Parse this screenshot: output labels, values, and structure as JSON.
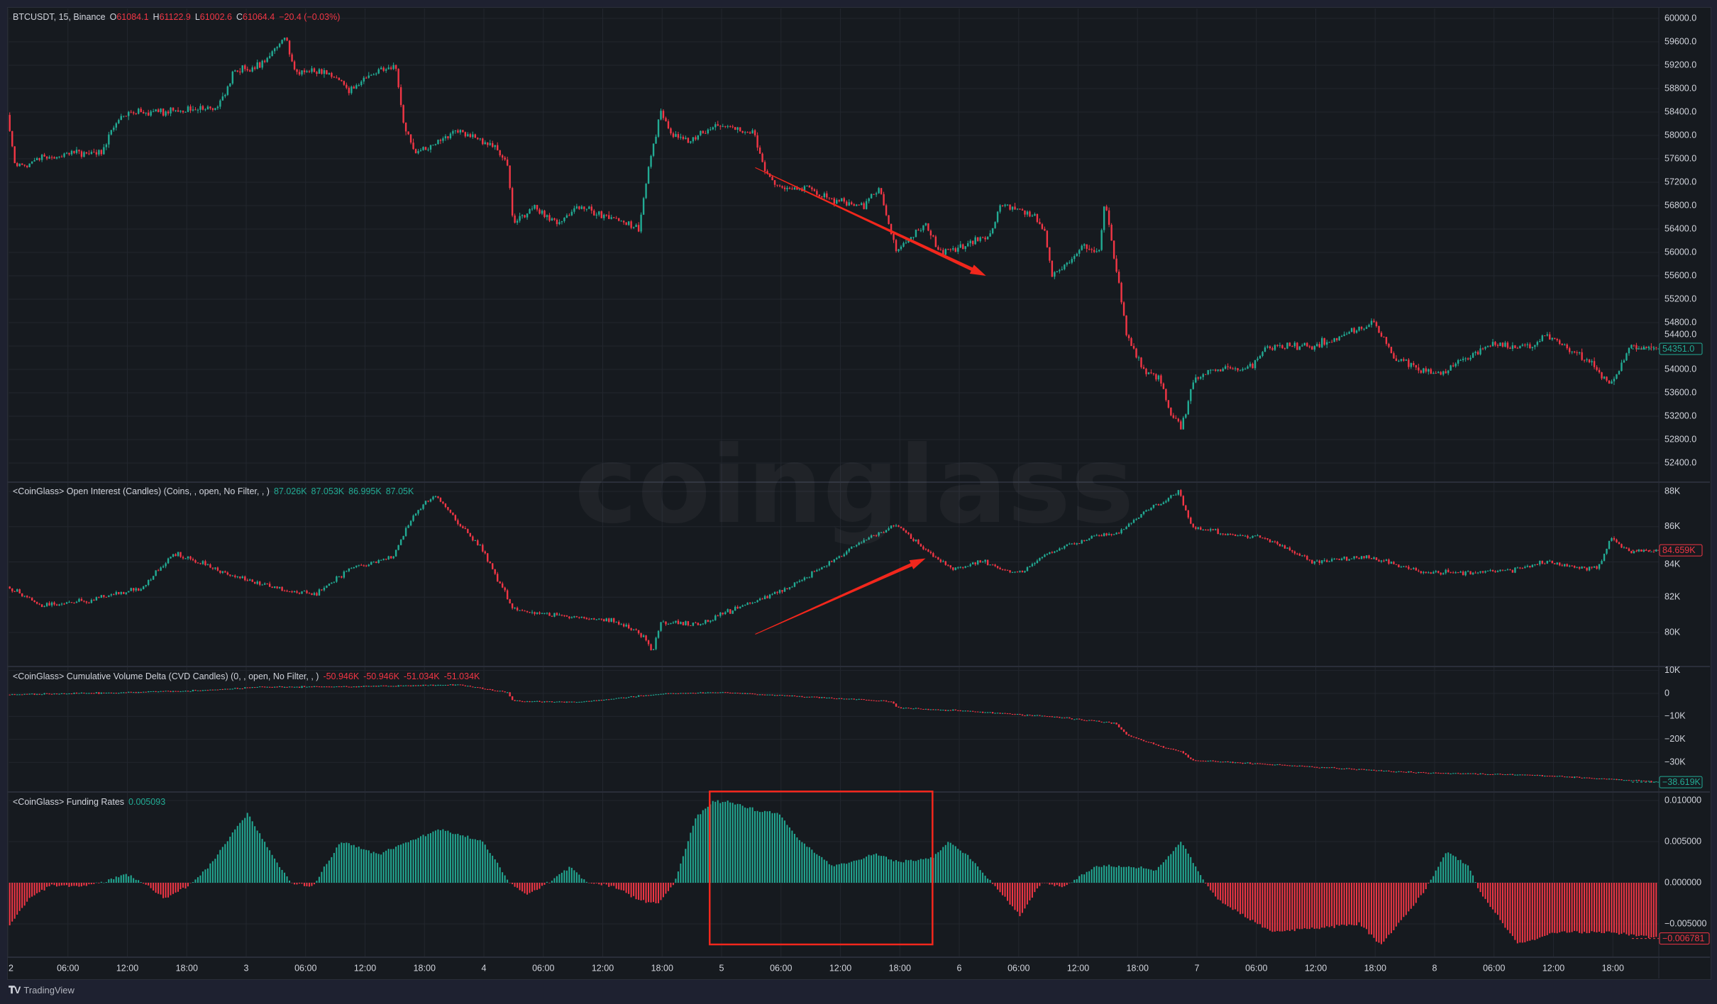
{
  "legends": {
    "price": {
      "symbol": "BTCUSDT, 15, Binance",
      "ohlc": [
        {
          "k": "O",
          "v": "61084.1"
        },
        {
          "k": "H",
          "v": "61122.9"
        },
        {
          "k": "L",
          "v": "61002.6"
        },
        {
          "k": "C",
          "v": "61064.4"
        }
      ],
      "change": "−20.4 (−0.03%)"
    },
    "oi": {
      "title": "<CoinGlass> Open Interest (Candles) (Coins, , open, No Filter, , )",
      "values": [
        "87.026K",
        "87.053K",
        "86.995K",
        "87.05K"
      ]
    },
    "cvd": {
      "title": "<CoinGlass> Cumulative Volume Delta (CVD Candles) (0, , open, No Filter, , )",
      "values": [
        "-50.946K",
        "-50.946K",
        "-51.034K",
        "-51.034K"
      ]
    },
    "funding": {
      "title": "<CoinGlass> Funding Rates",
      "value": "0.005093"
    }
  },
  "axes": {
    "price_ticks": [
      "60000.0",
      "59600.0",
      "59200.0",
      "58800.0",
      "58400.0",
      "58000.0",
      "57600.0",
      "57200.0",
      "56800.0",
      "56400.0",
      "56000.0",
      "55600.0",
      "55200.0",
      "54800.0",
      "54400.0",
      "54000.0",
      "53600.0",
      "53200.0",
      "52800.0",
      "52400.0"
    ],
    "price_tick_values": [
      60000,
      59600,
      59200,
      58800,
      58400,
      58000,
      57600,
      57200,
      56800,
      56400,
      56000,
      55600,
      55200,
      54800,
      54400,
      54000,
      53600,
      53200,
      52800,
      52400
    ],
    "oi_ticks": [
      "88K",
      "86K",
      "84K",
      "82K",
      "80K"
    ],
    "oi_tick_values": [
      88,
      86,
      84,
      82,
      80
    ],
    "cvd_ticks": [
      "10K",
      "0",
      "−10K",
      "−20K",
      "−30K"
    ],
    "cvd_tick_values": [
      10,
      0,
      -10,
      -20,
      -30
    ],
    "funding_ticks": [
      "0.010000",
      "0.005000",
      "0.000000",
      "−0.005000"
    ],
    "funding_tick_values": [
      0.01,
      0.005,
      0,
      -0.005
    ],
    "time_labels": [
      "2",
      "06:00",
      "12:00",
      "18:00",
      "3",
      "06:00",
      "12:00",
      "18:00",
      "4",
      "06:00",
      "12:00",
      "18:00",
      "5",
      "06:00",
      "12:00",
      "18:00",
      "6",
      "06:00",
      "12:00",
      "18:00",
      "7",
      "06:00",
      "12:00",
      "18:00",
      "8",
      "06:00",
      "12:00",
      "18:00"
    ],
    "time_label_hours": [
      0,
      6,
      12,
      18,
      24,
      30,
      36,
      42,
      48,
      54,
      60,
      66,
      72,
      78,
      84,
      90,
      96,
      102,
      108,
      114,
      120,
      126,
      132,
      138,
      144,
      150,
      156,
      162
    ]
  },
  "last_values": {
    "price": {
      "label": "54351.0",
      "value": 54351,
      "color": "#22ab94"
    },
    "oi": {
      "label": "84.659K",
      "value": 84.659,
      "color": "#f23645"
    },
    "cvd": {
      "label": "−38.619K",
      "value": -38.619,
      "color": "#22ab94"
    },
    "funding": {
      "label": "−0.006781",
      "value": -0.006781,
      "color": "#f23645"
    }
  },
  "colors": {
    "up": "#22ab94",
    "down": "#f23645",
    "annotation": "#f2271c"
  },
  "watermark": "coinglass",
  "footer": {
    "brand": "TradingView"
  },
  "chart_data": {
    "type": "candlestick",
    "interval_minutes": 15,
    "span_hours": 166.7,
    "price_path": [
      [
        0,
        58350
      ],
      [
        0.8,
        57450
      ],
      [
        3.5,
        57600
      ],
      [
        6.9,
        57700
      ],
      [
        9.6,
        57700
      ],
      [
        10.7,
        58200
      ],
      [
        12.4,
        58400
      ],
      [
        16.8,
        58400
      ],
      [
        21.2,
        58500
      ],
      [
        22.9,
        59100
      ],
      [
        25.7,
        59200
      ],
      [
        28.1,
        59700
      ],
      [
        29,
        59100
      ],
      [
        32.3,
        59100
      ],
      [
        34.5,
        58800
      ],
      [
        37.3,
        59100
      ],
      [
        39.2,
        59200
      ],
      [
        40,
        58200
      ],
      [
        41.1,
        57700
      ],
      [
        45.6,
        58100
      ],
      [
        49.4,
        57800
      ],
      [
        50.5,
        57500
      ],
      [
        51.1,
        56500
      ],
      [
        53.3,
        56800
      ],
      [
        55.5,
        56500
      ],
      [
        57.7,
        56800
      ],
      [
        61.1,
        56600
      ],
      [
        63.8,
        56400
      ],
      [
        64.9,
        57600
      ],
      [
        66,
        58400
      ],
      [
        67.1,
        58000
      ],
      [
        68.8,
        57900
      ],
      [
        72.1,
        58200
      ],
      [
        75.4,
        58000
      ],
      [
        76.5,
        57400
      ],
      [
        77.6,
        57100
      ],
      [
        81,
        57100
      ],
      [
        83.2,
        56900
      ],
      [
        86.5,
        56800
      ],
      [
        88.1,
        57100
      ],
      [
        89.8,
        56000
      ],
      [
        92.6,
        56500
      ],
      [
        94.2,
        56000
      ],
      [
        96.4,
        56100
      ],
      [
        99.2,
        56300
      ],
      [
        100.3,
        56800
      ],
      [
        103.1,
        56700
      ],
      [
        104.7,
        56400
      ],
      [
        105.5,
        55600
      ],
      [
        108.6,
        56100
      ],
      [
        110.3,
        56000
      ],
      [
        110.8,
        56900
      ],
      [
        111.9,
        55800
      ],
      [
        113,
        54600
      ],
      [
        114.7,
        54000
      ],
      [
        116.4,
        53800
      ],
      [
        117.5,
        53200
      ],
      [
        118.6,
        53000
      ],
      [
        119.7,
        53800
      ],
      [
        121.9,
        54000
      ],
      [
        125.2,
        54000
      ],
      [
        127.4,
        54400
      ],
      [
        131.8,
        54400
      ],
      [
        135.2,
        54600
      ],
      [
        137.9,
        54800
      ],
      [
        140.1,
        54200
      ],
      [
        142.9,
        54000
      ],
      [
        144.6,
        53900
      ],
      [
        147.3,
        54200
      ],
      [
        149.6,
        54400
      ],
      [
        154,
        54400
      ],
      [
        155.1,
        54600
      ],
      [
        158.4,
        54300
      ],
      [
        160.6,
        54000
      ],
      [
        161.9,
        53700
      ],
      [
        163.9,
        54400
      ],
      [
        166.7,
        54351
      ]
    ],
    "oi_path_k": [
      [
        0,
        82.6
      ],
      [
        3.5,
        81.5
      ],
      [
        8,
        81.8
      ],
      [
        13.5,
        82.5
      ],
      [
        16.8,
        84.5
      ],
      [
        22.9,
        83.2
      ],
      [
        27.9,
        82.4
      ],
      [
        31.2,
        82.2
      ],
      [
        34.5,
        83.6
      ],
      [
        38.9,
        84.3
      ],
      [
        41.1,
        86.7
      ],
      [
        43.1,
        87.8
      ],
      [
        45.6,
        86.2
      ],
      [
        47.8,
        84.8
      ],
      [
        50.5,
        82
      ],
      [
        51.1,
        81.3
      ],
      [
        56.6,
        80.9
      ],
      [
        61.1,
        80.7
      ],
      [
        64.4,
        79.8
      ],
      [
        65.1,
        78.8
      ],
      [
        66,
        80.6
      ],
      [
        69.9,
        80.5
      ],
      [
        74.3,
        81.5
      ],
      [
        78.7,
        82.5
      ],
      [
        83.2,
        84
      ],
      [
        86.5,
        85.3
      ],
      [
        89.8,
        86.1
      ],
      [
        92,
        85
      ],
      [
        95.3,
        83.6
      ],
      [
        98.7,
        84
      ],
      [
        102,
        83.3
      ],
      [
        105.3,
        84.5
      ],
      [
        109.7,
        85.5
      ],
      [
        111.9,
        85.6
      ],
      [
        115.2,
        87
      ],
      [
        118.3,
        88
      ],
      [
        119.7,
        85.9
      ],
      [
        124.1,
        85.5
      ],
      [
        127.4,
        85.3
      ],
      [
        131.8,
        84
      ],
      [
        137.4,
        84.3
      ],
      [
        142.9,
        83.4
      ],
      [
        147.3,
        83.4
      ],
      [
        151.7,
        83.5
      ],
      [
        155.1,
        84
      ],
      [
        160.6,
        83.6
      ],
      [
        161.9,
        85.3
      ],
      [
        163.9,
        84.6
      ],
      [
        166.7,
        84.659
      ]
    ],
    "cvd_path_k": [
      [
        0,
        -0.5
      ],
      [
        10.2,
        0.2
      ],
      [
        21.2,
        1.5
      ],
      [
        24.6,
        2.7
      ],
      [
        38.9,
        3.2
      ],
      [
        45.6,
        3.8
      ],
      [
        50.5,
        0.5
      ],
      [
        51.1,
        -3.3
      ],
      [
        57.7,
        -3.8
      ],
      [
        65.5,
        -0.3
      ],
      [
        72.1,
        0.5
      ],
      [
        76.5,
        -0.5
      ],
      [
        83.2,
        -2
      ],
      [
        89.3,
        -3.5
      ],
      [
        89.8,
        -6.2
      ],
      [
        96.4,
        -7.6
      ],
      [
        105.3,
        -10
      ],
      [
        111.9,
        -13
      ],
      [
        113,
        -18
      ],
      [
        116.4,
        -23
      ],
      [
        118.6,
        -25.5
      ],
      [
        119.7,
        -29
      ],
      [
        131.8,
        -32
      ],
      [
        142.9,
        -34.5
      ],
      [
        154,
        -35.5
      ],
      [
        160.6,
        -37
      ],
      [
        166.7,
        -38.619
      ]
    ],
    "funding_path": [
      [
        0,
        -0.0051
      ],
      [
        1.9,
        -0.002
      ],
      [
        4.1,
        -0.0003
      ],
      [
        6.9,
        -0.0005
      ],
      [
        9.1,
        0
      ],
      [
        11.8,
        0.001
      ],
      [
        13.5,
        0
      ],
      [
        15.7,
        -0.002
      ],
      [
        18.5,
        0
      ],
      [
        20.1,
        0.002
      ],
      [
        24,
        0.0085
      ],
      [
        26.2,
        0.004
      ],
      [
        28.4,
        0
      ],
      [
        30.6,
        -0.0005
      ],
      [
        33.4,
        0.005
      ],
      [
        37.3,
        0.0035
      ],
      [
        43.4,
        0.0065
      ],
      [
        47.8,
        0.005
      ],
      [
        50.5,
        0
      ],
      [
        52.2,
        -0.0015
      ],
      [
        54.4,
        0
      ],
      [
        56.6,
        0.002
      ],
      [
        58.3,
        0
      ],
      [
        61.1,
        -0.0005
      ],
      [
        63.3,
        -0.002
      ],
      [
        65.5,
        -0.0025
      ],
      [
        67.1,
        0
      ],
      [
        69.3,
        0.008
      ],
      [
        71,
        0.0098
      ],
      [
        72.7,
        0.0099
      ],
      [
        75.4,
        0.0088
      ],
      [
        77.6,
        0.0085
      ],
      [
        79.9,
        0.005
      ],
      [
        83.2,
        0.002
      ],
      [
        87.6,
        0.0035
      ],
      [
        89.8,
        0.0025
      ],
      [
        93.1,
        0.003
      ],
      [
        94.8,
        0.005
      ],
      [
        97,
        0.003
      ],
      [
        99.2,
        0
      ],
      [
        102,
        -0.004
      ],
      [
        104.2,
        0
      ],
      [
        106.4,
        -0.0005
      ],
      [
        109.7,
        0.002
      ],
      [
        113,
        0.002
      ],
      [
        115.8,
        0.0015
      ],
      [
        118.3,
        0.005
      ],
      [
        120.2,
        0.001
      ],
      [
        121.9,
        -0.002
      ],
      [
        127.4,
        -0.006
      ],
      [
        131.8,
        -0.0055
      ],
      [
        136.3,
        -0.005
      ],
      [
        138.5,
        -0.0075
      ],
      [
        142.9,
        -0.001
      ],
      [
        145.1,
        0.0038
      ],
      [
        147.3,
        0.002
      ],
      [
        148.4,
        -0.001
      ],
      [
        152.3,
        -0.0075
      ],
      [
        156.2,
        -0.006
      ],
      [
        161.7,
        -0.006
      ],
      [
        166.7,
        -0.0068
      ]
    ],
    "annotations": [
      {
        "type": "arrow",
        "pane": "price",
        "from": [
          75.4,
          57450
        ],
        "to": [
          98.7,
          55600
        ]
      },
      {
        "type": "arrow",
        "pane": "oi",
        "from": [
          75.4,
          79.9
        ],
        "to": [
          92.6,
          84.2
        ]
      },
      {
        "type": "rectangle",
        "pane": "funding",
        "from": [
          70.8,
          0.0111
        ],
        "to": [
          93.3,
          -0.0075
        ]
      }
    ]
  }
}
